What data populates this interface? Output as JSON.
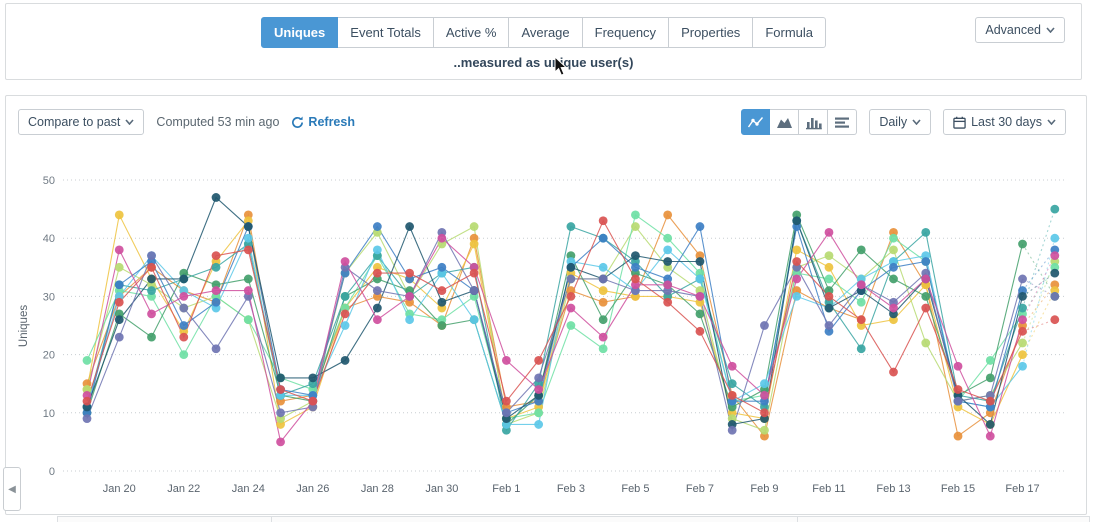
{
  "header": {
    "tabs": [
      {
        "label": "Uniques",
        "selected": true
      },
      {
        "label": "Event Totals",
        "selected": false
      },
      {
        "label": "Active %",
        "selected": false
      },
      {
        "label": "Average",
        "selected": false
      },
      {
        "label": "Frequency",
        "selected": false
      },
      {
        "label": "Properties",
        "selected": false
      },
      {
        "label": "Formula",
        "selected": false
      }
    ],
    "advanced_label": "Advanced",
    "subtitle": "..measured as unique user(s)"
  },
  "toolbar": {
    "compare_label": "Compare to past",
    "computed_label": "Computed 53 min ago",
    "refresh_label": "Refresh",
    "refresh_icon": "refresh-icon",
    "view_modes": [
      {
        "icon": "line-chart-icon",
        "selected": true
      },
      {
        "icon": "area-chart-icon",
        "selected": false
      },
      {
        "icon": "bar-chart-icon",
        "selected": false
      },
      {
        "icon": "row-chart-icon",
        "selected": false
      }
    ],
    "interval_label": "Daily",
    "date_range_label": "Last 30 days",
    "date_range_icon": "calendar-icon"
  },
  "colors": {
    "accent_blue": "#4a97d4",
    "link_blue": "#2a7ab8",
    "grid": "#c8cdd1"
  },
  "chart_data": {
    "type": "line",
    "title": "",
    "ylabel": "Uniques",
    "ylim": [
      0,
      50
    ],
    "yticks": [
      0,
      10,
      20,
      30,
      40,
      50
    ],
    "grid": "dotted-horizontal",
    "legend": "none",
    "last_segment_dotted": true,
    "x": [
      "Jan 19",
      "Jan 20",
      "Jan 21",
      "Jan 22",
      "Jan 23",
      "Jan 24",
      "Jan 25",
      "Jan 26",
      "Jan 27",
      "Jan 28",
      "Jan 29",
      "Jan 30",
      "Jan 31",
      "Feb 1",
      "Feb 2",
      "Feb 3",
      "Feb 4",
      "Feb 5",
      "Feb 6",
      "Feb 7",
      "Feb 8",
      "Feb 9",
      "Feb 10",
      "Feb 11",
      "Feb 12",
      "Feb 13",
      "Feb 14",
      "Feb 15",
      "Feb 16",
      "Feb 17",
      "Feb 18"
    ],
    "x_tick_labels": [
      "Jan 20",
      "Jan 22",
      "Jan 24",
      "Jan 26",
      "Jan 28",
      "Jan 30",
      "Feb 1",
      "Feb 3",
      "Feb 5",
      "Feb 7",
      "Feb 9",
      "Feb 11",
      "Feb 13",
      "Feb 15",
      "Feb 17"
    ],
    "series": [
      {
        "color": "#e8913c",
        "values": [
          15,
          30,
          35,
          31,
          29,
          44,
          12,
          13,
          28,
          30,
          29,
          25,
          40,
          11,
          12,
          31,
          29,
          30,
          44,
          37,
          13,
          6,
          31,
          28,
          26,
          41,
          32,
          6,
          10,
          25,
          32
        ]
      },
      {
        "color": "#eec33f",
        "values": [
          14,
          44,
          33,
          24,
          36,
          43,
          8,
          11,
          28,
          35,
          33,
          28,
          39,
          9,
          11,
          34,
          31,
          30,
          30,
          29,
          10,
          9,
          38,
          35,
          25,
          26,
          32,
          11,
          8,
          20,
          31
        ]
      },
      {
        "color": "#b7da72",
        "values": [
          14,
          35,
          32,
          28,
          30,
          26,
          9,
          12,
          34,
          41,
          30,
          39,
          42,
          8,
          10,
          33,
          33,
          42,
          35,
          31,
          9,
          7,
          35,
          37,
          33,
          38,
          22,
          12,
          13,
          22,
          36
        ]
      },
      {
        "color": "#6fe0a5",
        "values": [
          19,
          31,
          30,
          20,
          30,
          26,
          16,
          14,
          28,
          37,
          27,
          26,
          30,
          9,
          10,
          25,
          21,
          44,
          40,
          34,
          12,
          13,
          34,
          33,
          29,
          40,
          36,
          12,
          19,
          27,
          35
        ]
      },
      {
        "color": "#43a06b",
        "values": [
          10,
          27,
          23,
          34,
          32,
          33,
          13,
          12,
          30,
          33,
          31,
          25,
          26,
          8,
          13,
          37,
          26,
          34,
          32,
          27,
          11,
          14,
          44,
          31,
          38,
          33,
          30,
          13,
          16,
          39,
          30
        ]
      },
      {
        "color": "#38a5a2",
        "values": [
          11,
          32,
          31,
          33,
          35,
          39,
          13,
          15,
          30,
          37,
          30,
          34,
          35,
          7,
          15,
          42,
          40,
          36,
          30,
          33,
          15,
          11,
          43,
          29,
          21,
          36,
          41,
          13,
          12,
          28,
          45
        ]
      },
      {
        "color": "#5cc8e8",
        "values": [
          11,
          30,
          37,
          31,
          28,
          40,
          13,
          13,
          25,
          38,
          26,
          34,
          26,
          8,
          8,
          36,
          35,
          31,
          38,
          33,
          12,
          15,
          30,
          28,
          33,
          36,
          37,
          12,
          11,
          18,
          40
        ]
      },
      {
        "color": "#3d7fc4",
        "values": [
          10,
          32,
          36,
          25,
          29,
          42,
          14,
          13,
          34,
          42,
          33,
          35,
          31,
          10,
          12,
          35,
          40,
          35,
          33,
          42,
          12,
          12,
          42,
          24,
          31,
          35,
          36,
          12,
          11,
          31,
          38
        ]
      },
      {
        "color": "#1f576e",
        "values": [
          11,
          26,
          33,
          33,
          47,
          42,
          16,
          16,
          19,
          28,
          42,
          29,
          31,
          9,
          13,
          35,
          33,
          37,
          36,
          36,
          8,
          9,
          43,
          28,
          31,
          27,
          33,
          13,
          8,
          30,
          34
        ]
      },
      {
        "color": "#6f74b2",
        "values": [
          9,
          23,
          37,
          28,
          21,
          30,
          10,
          11,
          35,
          31,
          30,
          41,
          31,
          10,
          16,
          33,
          33,
          31,
          31,
          30,
          7,
          25,
          35,
          25,
          32,
          29,
          34,
          12,
          13,
          33,
          30
        ]
      },
      {
        "color": "#cf4f9e",
        "values": [
          13,
          38,
          27,
          30,
          31,
          31,
          5,
          12,
          36,
          26,
          30,
          40,
          35,
          19,
          14,
          28,
          23,
          32,
          32,
          30,
          18,
          13,
          33,
          41,
          32,
          28,
          33,
          18,
          6,
          26,
          37
        ]
      },
      {
        "color": "#d95351",
        "values": [
          12,
          29,
          35,
          23,
          37,
          38,
          14,
          12,
          27,
          34,
          34,
          31,
          34,
          12,
          19,
          30,
          43,
          33,
          29,
          24,
          13,
          10,
          36,
          30,
          26,
          17,
          28,
          14,
          12,
          24,
          26
        ]
      }
    ]
  },
  "misc": {
    "collapse_icon": "collapse-left-icon",
    "cursor_icon": "mouse-cursor-icon"
  }
}
